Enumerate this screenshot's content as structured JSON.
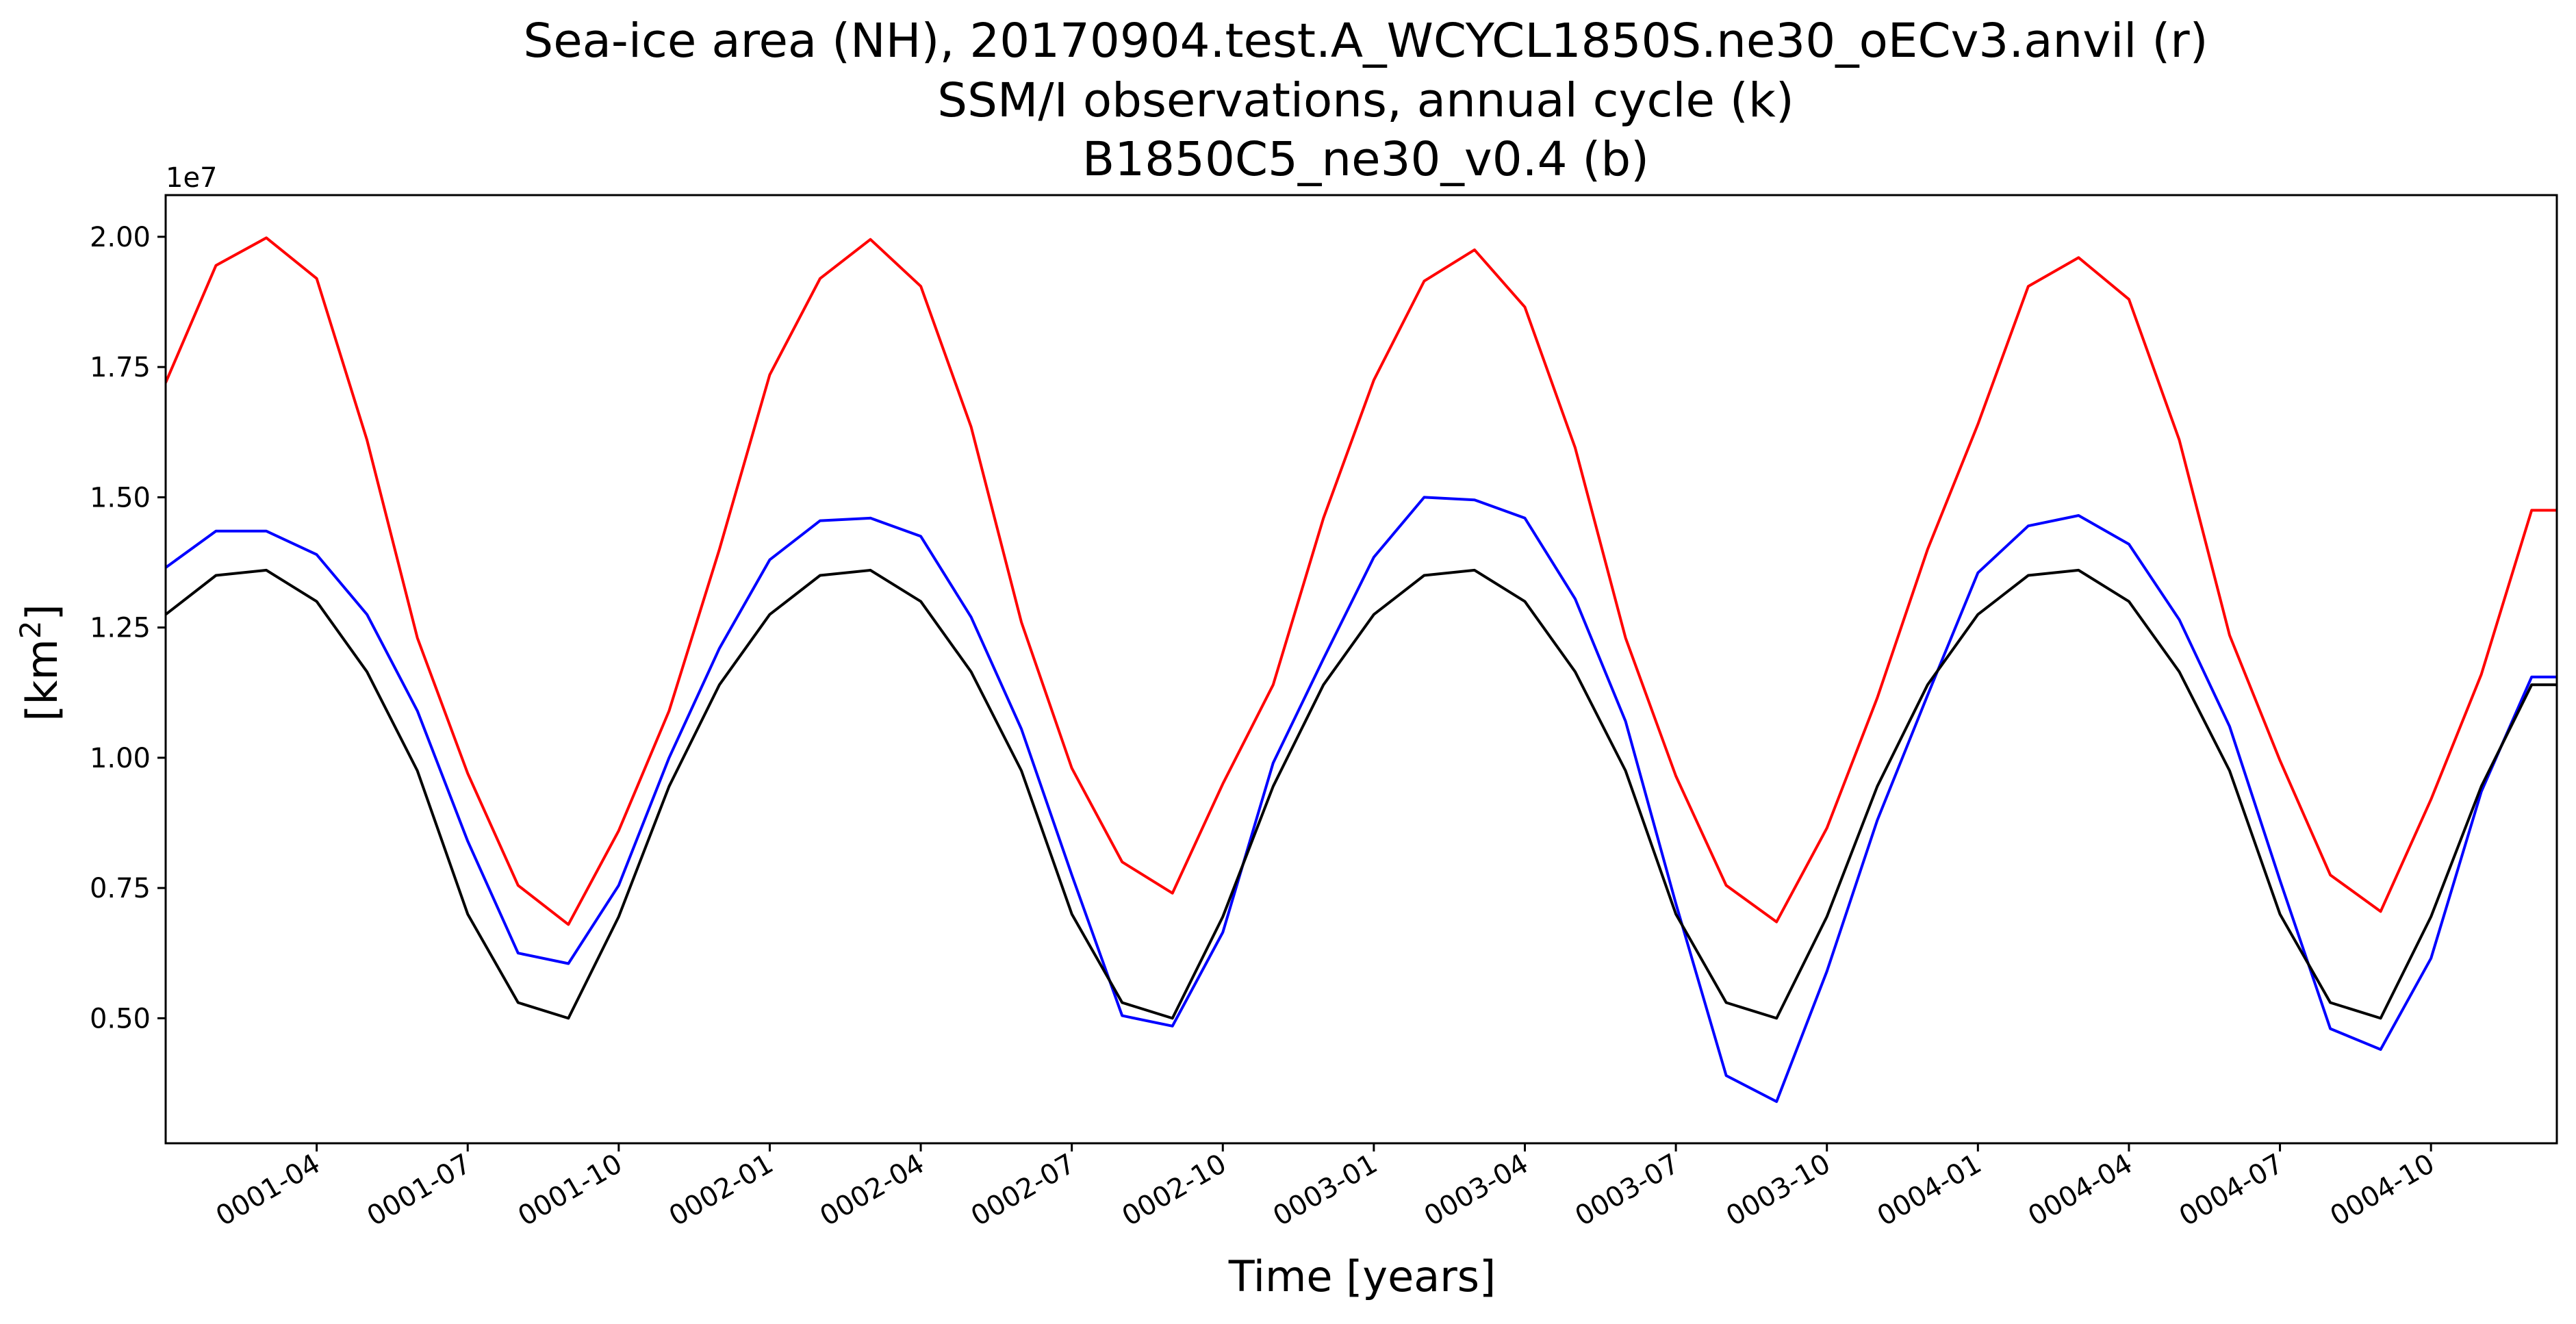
{
  "chart_data": {
    "type": "line",
    "title": [
      "Sea-ice area (NH), 20170904.test.A_WCYCL1850S.ne30_oECv3.anvil (r)",
      "SSM/I observations, annual cycle (k)",
      "B1850C5_ne30_v0.4 (b)"
    ],
    "xlabel": "Time [years]",
    "ylabel": "[km²]",
    "ylabel_base": "[km",
    "ylabel_sup": "2",
    "ylabel_end": "]",
    "y_offset_label": "1e7",
    "y_scale": 10000000.0,
    "ylim": [
      0.26,
      2.08
    ],
    "xlim": [
      0.5,
      48.0
    ],
    "yticks": [
      0.5,
      0.75,
      1.0,
      1.25,
      1.5,
      1.75,
      2.0
    ],
    "ytick_labels": [
      "0.50",
      "0.75",
      "1.00",
      "1.25",
      "1.50",
      "1.75",
      "2.00"
    ],
    "xticks": [
      3.5,
      6.5,
      9.5,
      12.5,
      15.5,
      18.5,
      21.5,
      24.5,
      27.5,
      30.5,
      33.5,
      36.5,
      39.5,
      42.5,
      45.5
    ],
    "xtick_labels": [
      "0001-04",
      "0001-07",
      "0001-10",
      "0002-01",
      "0002-04",
      "0002-07",
      "0002-10",
      "0003-01",
      "0003-04",
      "0003-07",
      "0003-10",
      "0004-01",
      "0004-04",
      "0004-07",
      "0004-10"
    ],
    "x": [
      0.5,
      1.5,
      2.5,
      3.5,
      4.5,
      5.5,
      6.5,
      7.5,
      8.5,
      9.5,
      10.5,
      11.5,
      12.5,
      13.5,
      14.5,
      15.5,
      16.5,
      17.5,
      18.5,
      19.5,
      20.5,
      21.5,
      22.5,
      23.5,
      24.5,
      25.5,
      26.5,
      27.5,
      28.5,
      29.5,
      30.5,
      31.5,
      32.5,
      33.5,
      34.5,
      35.5,
      36.5,
      37.5,
      38.5,
      39.5,
      40.5,
      41.5,
      42.5,
      43.5,
      44.5,
      45.5,
      46.5,
      47.5,
      48.0
    ],
    "grid": false,
    "legend": "none",
    "series": [
      {
        "color": "#ff0000",
        "values": [
          1.72,
          1.945,
          1.998,
          1.92,
          1.61,
          1.23,
          0.97,
          0.755,
          0.68,
          0.86,
          1.09,
          1.4,
          1.735,
          1.92,
          1.995,
          1.905,
          1.635,
          1.26,
          0.98,
          0.8,
          0.74,
          0.95,
          1.14,
          1.46,
          1.725,
          1.915,
          1.975,
          1.865,
          1.595,
          1.23,
          0.965,
          0.755,
          0.685,
          0.865,
          1.115,
          1.4,
          1.64,
          1.905,
          1.96,
          1.88,
          1.61,
          1.235,
          0.995,
          0.775,
          0.705,
          0.92,
          1.16,
          1.475,
          1.475
        ]
      },
      {
        "color": "#0000ff",
        "values": [
          1.365,
          1.435,
          1.435,
          1.39,
          1.275,
          1.09,
          0.84,
          0.625,
          0.605,
          0.755,
          1.0,
          1.21,
          1.38,
          1.455,
          1.46,
          1.425,
          1.27,
          1.055,
          0.775,
          0.505,
          0.485,
          0.665,
          0.99,
          1.19,
          1.385,
          1.5,
          1.495,
          1.46,
          1.305,
          1.07,
          0.72,
          0.39,
          0.34,
          0.59,
          0.88,
          1.12,
          1.355,
          1.445,
          1.465,
          1.41,
          1.265,
          1.06,
          0.765,
          0.48,
          0.44,
          0.615,
          0.935,
          1.155,
          1.155
        ]
      },
      {
        "color": "#000000",
        "values": [
          1.275,
          1.35,
          1.36,
          1.3,
          1.165,
          0.975,
          0.7,
          0.53,
          0.5,
          0.695,
          0.945,
          1.14,
          1.275,
          1.35,
          1.36,
          1.3,
          1.165,
          0.975,
          0.7,
          0.53,
          0.5,
          0.695,
          0.945,
          1.14,
          1.275,
          1.35,
          1.36,
          1.3,
          1.165,
          0.975,
          0.7,
          0.53,
          0.5,
          0.695,
          0.945,
          1.14,
          1.275,
          1.35,
          1.36,
          1.3,
          1.165,
          0.975,
          0.7,
          0.53,
          0.5,
          0.695,
          0.945,
          1.14,
          1.14
        ]
      }
    ]
  }
}
